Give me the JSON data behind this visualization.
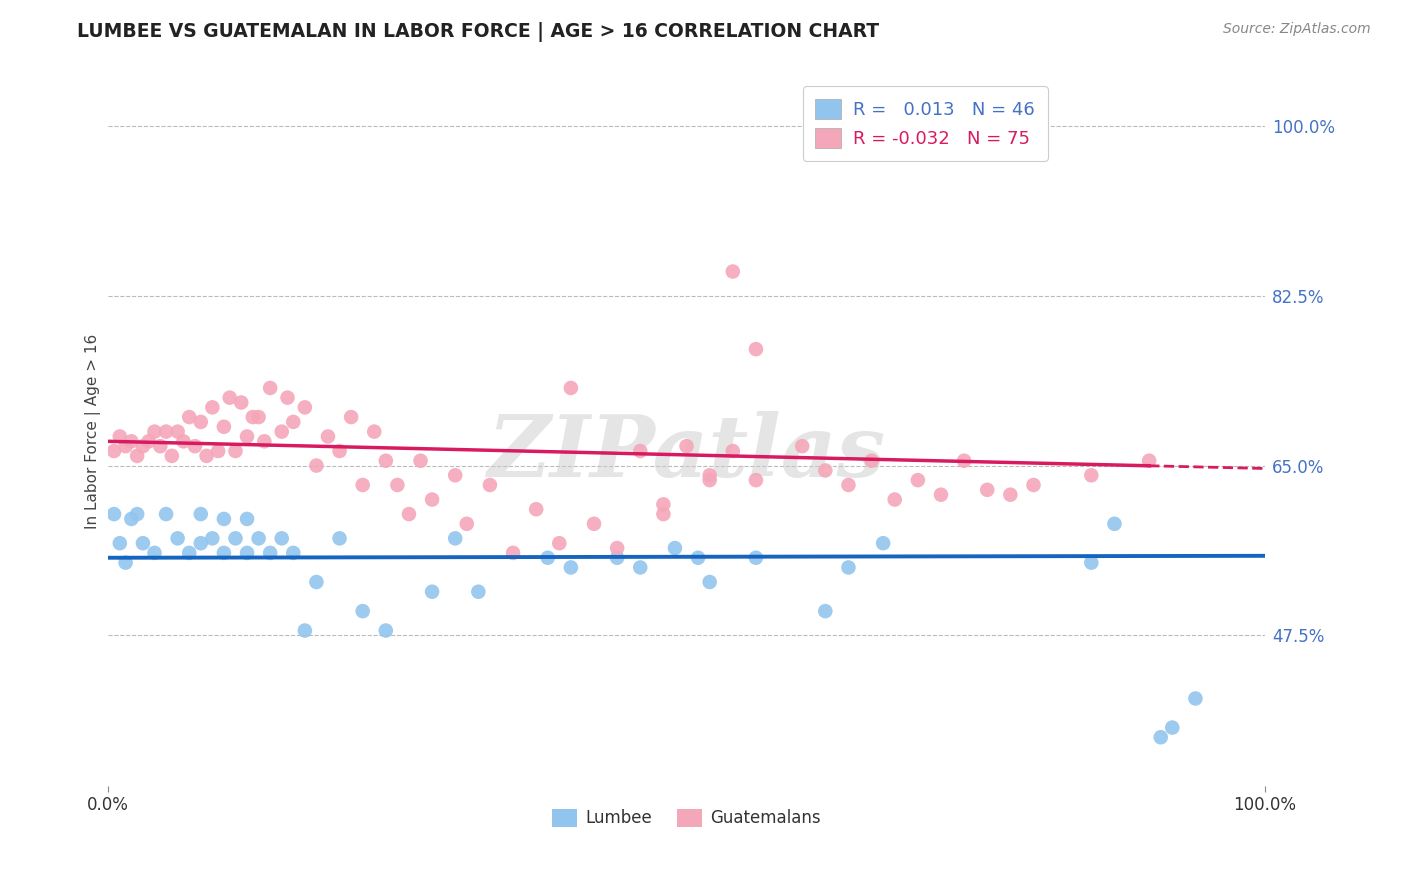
{
  "title": "LUMBEE VS GUATEMALAN IN LABOR FORCE | AGE > 16 CORRELATION CHART",
  "source_text": "Source: ZipAtlas.com",
  "ylabel": "In Labor Force | Age > 16",
  "xlim": [
    0,
    1
  ],
  "ylim": [
    0.32,
    1.05
  ],
  "xticks": [
    0.0,
    1.0
  ],
  "xticklabels": [
    "0.0%",
    "100.0%"
  ],
  "ytick_positions": [
    0.475,
    0.65,
    0.825,
    1.0
  ],
  "ytick_labels": [
    "47.5%",
    "65.0%",
    "82.5%",
    "100.0%"
  ],
  "lumbee_R": 0.013,
  "lumbee_N": 46,
  "guatemalan_R": -0.032,
  "guatemalan_N": 75,
  "lumbee_color": "#92C5EE",
  "guatemalan_color": "#F4A7B9",
  "lumbee_line_color": "#1565C0",
  "guatemalan_line_color": "#D81B60",
  "background_color": "#FFFFFF",
  "grid_color": "#BBBBBB",
  "title_color": "#222222",
  "watermark_text": "ZIPatlas",
  "lumbee_line_y_intercept": 0.555,
  "lumbee_line_slope": 0.002,
  "guatemalan_line_y_intercept": 0.675,
  "guatemalan_line_slope": -0.028,
  "lumbee_x": [
    0.005,
    0.01,
    0.015,
    0.02,
    0.025,
    0.03,
    0.04,
    0.05,
    0.06,
    0.07,
    0.08,
    0.08,
    0.09,
    0.1,
    0.1,
    0.11,
    0.12,
    0.12,
    0.13,
    0.14,
    0.15,
    0.16,
    0.17,
    0.18,
    0.2,
    0.22,
    0.24,
    0.28,
    0.3,
    0.32,
    0.38,
    0.4,
    0.44,
    0.46,
    0.49,
    0.51,
    0.52,
    0.56,
    0.62,
    0.64,
    0.67,
    0.85,
    0.87,
    0.91,
    0.92,
    0.94
  ],
  "lumbee_y": [
    0.6,
    0.57,
    0.55,
    0.595,
    0.6,
    0.57,
    0.56,
    0.6,
    0.575,
    0.56,
    0.57,
    0.6,
    0.575,
    0.595,
    0.56,
    0.575,
    0.595,
    0.56,
    0.575,
    0.56,
    0.575,
    0.56,
    0.48,
    0.53,
    0.575,
    0.5,
    0.48,
    0.52,
    0.575,
    0.52,
    0.555,
    0.545,
    0.555,
    0.545,
    0.565,
    0.555,
    0.53,
    0.555,
    0.5,
    0.545,
    0.57,
    0.55,
    0.59,
    0.37,
    0.38,
    0.41
  ],
  "guatemalan_x": [
    0.005,
    0.01,
    0.015,
    0.02,
    0.025,
    0.03,
    0.035,
    0.04,
    0.045,
    0.05,
    0.055,
    0.06,
    0.065,
    0.07,
    0.075,
    0.08,
    0.085,
    0.09,
    0.095,
    0.1,
    0.105,
    0.11,
    0.115,
    0.12,
    0.125,
    0.13,
    0.135,
    0.14,
    0.15,
    0.155,
    0.16,
    0.17,
    0.18,
    0.19,
    0.2,
    0.21,
    0.22,
    0.23,
    0.24,
    0.25,
    0.26,
    0.27,
    0.28,
    0.3,
    0.31,
    0.33,
    0.35,
    0.37,
    0.39,
    0.4,
    0.42,
    0.44,
    0.46,
    0.48,
    0.5,
    0.52,
    0.54,
    0.56,
    0.48,
    0.52,
    0.54,
    0.56,
    0.6,
    0.62,
    0.64,
    0.66,
    0.68,
    0.7,
    0.72,
    0.74,
    0.76,
    0.78,
    0.8,
    0.85,
    0.9
  ],
  "guatemalan_y": [
    0.665,
    0.68,
    0.67,
    0.675,
    0.66,
    0.67,
    0.675,
    0.685,
    0.67,
    0.685,
    0.66,
    0.685,
    0.675,
    0.7,
    0.67,
    0.695,
    0.66,
    0.71,
    0.665,
    0.69,
    0.72,
    0.665,
    0.715,
    0.68,
    0.7,
    0.7,
    0.675,
    0.73,
    0.685,
    0.72,
    0.695,
    0.71,
    0.65,
    0.68,
    0.665,
    0.7,
    0.63,
    0.685,
    0.655,
    0.63,
    0.6,
    0.655,
    0.615,
    0.64,
    0.59,
    0.63,
    0.56,
    0.605,
    0.57,
    0.73,
    0.59,
    0.565,
    0.665,
    0.61,
    0.67,
    0.64,
    0.85,
    0.77,
    0.6,
    0.635,
    0.665,
    0.635,
    0.67,
    0.645,
    0.63,
    0.655,
    0.615,
    0.635,
    0.62,
    0.655,
    0.625,
    0.62,
    0.63,
    0.64,
    0.655
  ]
}
